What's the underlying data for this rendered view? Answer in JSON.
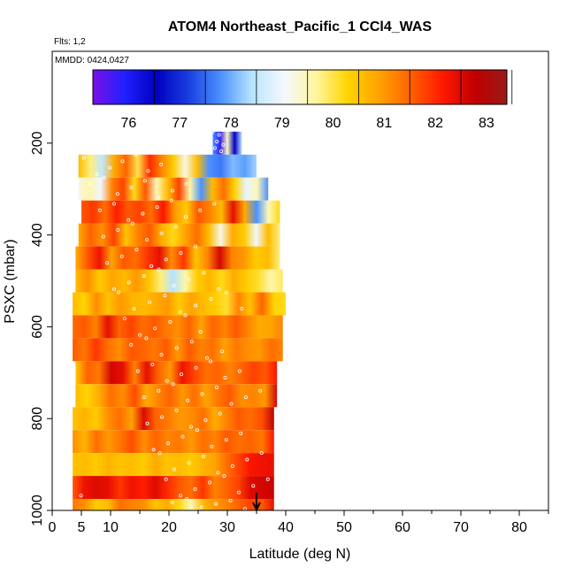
{
  "header": {
    "title": "ATOM4 Northeast_Pacific_1 CCl4_WAS",
    "flights_label": "Flts: 1,2",
    "dates_label": "MMDD: 0424,0427"
  },
  "colorbar": {
    "labels": [
      "76",
      "77",
      "78",
      "79",
      "80",
      "81",
      "82",
      "83"
    ],
    "colors": [
      "#7a10e6",
      "#2020ff",
      "#0000c0",
      "#1a3ee0",
      "#4a90ff",
      "#b8e4ff",
      "#f4f8ff",
      "#fff6a0",
      "#ffd400",
      "#ffa200",
      "#ff6000",
      "#ff1800",
      "#c00000",
      "#9a1a1a"
    ]
  },
  "chart_data": {
    "type": "heatmap",
    "title": "ATOM4 Northeast_Pacific_1 CCl4_WAS",
    "xlabel": "Latitude (deg N)",
    "ylabel": "PSXC (mbar)",
    "xlim": [
      0,
      85
    ],
    "ylim": [
      1000,
      0
    ],
    "xticks": [
      0,
      5,
      10,
      20,
      30,
      40,
      50,
      60,
      70,
      80
    ],
    "yticks": [
      200,
      400,
      600,
      800,
      1000
    ],
    "color_range": [
      75.3,
      83.4
    ],
    "color_ticks": [
      76,
      77,
      78,
      79,
      80,
      81,
      82,
      83
    ],
    "marker_latitude": 35,
    "bands": [
      {
        "p_top": 175,
        "p_bot": 225,
        "x0": 27.5,
        "x1": 32.5,
        "values": [
          77.8,
          75.8,
          79.5,
          76.5,
          78.5
        ]
      },
      {
        "p_top": 225,
        "p_bot": 275,
        "x0": 4.5,
        "x1": 35,
        "values": [
          80.6,
          79.8,
          78.5,
          80.8,
          81.5,
          80.0,
          82.0,
          81.2,
          80.4,
          79.2,
          80.6,
          77.8,
          77.6,
          78.1,
          77.9,
          78.3
        ]
      },
      {
        "p_top": 275,
        "p_bot": 325,
        "x0": 4.5,
        "x1": 37,
        "values": [
          79.2,
          79.6,
          79.0,
          81.2,
          81.8,
          80.2,
          81.6,
          79.5,
          80.6,
          81.8,
          79.6,
          77.8,
          80.6,
          81.4,
          80.3,
          78.9,
          79.5,
          77.8
        ]
      },
      {
        "p_top": 325,
        "p_bot": 375,
        "x0": 5,
        "x1": 39,
        "values": [
          81.6,
          81.9,
          81.4,
          82.1,
          81.6,
          81.8,
          81.4,
          82.2,
          81.0,
          80.4,
          81.6,
          81.2,
          80.6,
          82.4,
          80.8,
          77.8,
          79.5,
          80.2
        ]
      },
      {
        "p_top": 375,
        "p_bot": 425,
        "x0": 4.5,
        "x1": 39,
        "values": [
          80.8,
          81.5,
          81.1,
          81.8,
          80.5,
          81.2,
          81.6,
          80.8,
          80.2,
          80.9,
          81.4,
          80.6,
          79.2,
          80.8,
          80.4,
          79.0,
          80.6,
          79.8
        ]
      },
      {
        "p_top": 425,
        "p_bot": 475,
        "x0": 4,
        "x1": 39,
        "values": [
          80.8,
          81.6,
          82.3,
          80.9,
          81.6,
          81.4,
          81.9,
          82.4,
          81.1,
          81.9,
          80.5,
          81.2,
          82.6,
          81.2,
          81.0,
          80.4,
          80.6,
          79.8
        ]
      },
      {
        "p_top": 475,
        "p_bot": 525,
        "x0": 4,
        "x1": 39.5,
        "values": [
          80.6,
          81.1,
          80.4,
          80.9,
          80.6,
          81.0,
          80.5,
          79.8,
          78.4,
          79.6,
          80.4,
          80.7,
          80.2,
          80.8,
          80.4,
          80.1,
          79.6,
          79.9
        ]
      },
      {
        "p_top": 525,
        "p_bot": 575,
        "x0": 3.5,
        "x1": 40,
        "values": [
          80.6,
          80.3,
          81.1,
          80.5,
          81.0,
          80.7,
          80.6,
          80.8,
          81.0,
          80.4,
          80.9,
          80.6,
          80.4,
          80.1,
          81.2,
          80.5,
          81.5,
          80.3,
          80.2
        ]
      },
      {
        "p_top": 575,
        "p_bot": 625,
        "x0": 3.5,
        "x1": 39.5,
        "values": [
          81.4,
          81.6,
          81.2,
          82.4,
          81.5,
          81.8,
          81.4,
          81.6,
          81.3,
          81.1,
          81.5,
          80.9,
          81.5,
          81.2,
          81.6,
          81.2,
          80.8,
          80.9,
          81.2
        ]
      },
      {
        "p_top": 625,
        "p_bot": 675,
        "x0": 3.5,
        "x1": 39.5,
        "values": [
          81.6,
          81.3,
          81.9,
          81.4,
          81.1,
          81.6,
          81.5,
          81.3,
          81.6,
          81.0,
          81.6,
          81.2,
          81.4,
          80.9,
          81.3,
          81.1,
          81.0,
          81.4,
          81.2
        ]
      },
      {
        "p_top": 675,
        "p_bot": 725,
        "x0": 4,
        "x1": 38.5,
        "values": [
          80.4,
          81.5,
          81.3,
          82.6,
          82.4,
          81.2,
          82.4,
          81.5,
          81.0,
          82.3,
          81.8,
          81.4,
          81.5,
          81.2,
          81.5,
          81.8,
          81.6,
          82.2
        ]
      },
      {
        "p_top": 725,
        "p_bot": 775,
        "x0": 4,
        "x1": 38.5,
        "values": [
          80.6,
          80.3,
          80.8,
          81.4,
          81.1,
          81.7,
          80.8,
          81.2,
          81.5,
          81.0,
          81.4,
          80.9,
          81.3,
          81.6,
          81.1,
          81.2,
          81.0,
          82.6
        ]
      },
      {
        "p_top": 775,
        "p_bot": 825,
        "x0": 3.5,
        "x1": 38,
        "values": [
          80.5,
          80.7,
          80.4,
          81.1,
          81.4,
          80.9,
          82.5,
          81.5,
          81.3,
          81.0,
          81.1,
          81.4,
          80.8,
          81.2,
          81.6,
          81.4,
          81.7,
          82.9
        ]
      },
      {
        "p_top": 825,
        "p_bot": 875,
        "x0": 3.5,
        "x1": 38,
        "values": [
          81.1,
          80.7,
          81.4,
          81.0,
          81.3,
          81.7,
          81.1,
          81.5,
          81.2,
          81.3,
          81.0,
          81.4,
          81.2,
          81.6,
          81.4,
          81.5,
          81.3,
          82.2
        ]
      },
      {
        "p_top": 875,
        "p_bot": 925,
        "x0": 3.5,
        "x1": 38,
        "values": [
          80.5,
          80.6,
          80.4,
          80.7,
          80.5,
          80.6,
          80.4,
          80.8,
          80.5,
          80.6,
          80.4,
          80.7,
          80.9,
          81.4,
          81.8,
          82.2,
          82.3,
          82.4
        ]
      },
      {
        "p_top": 925,
        "p_bot": 975,
        "x0": 3.5,
        "x1": 38,
        "values": [
          81.6,
          82.3,
          82.5,
          82.4,
          81.9,
          82.3,
          82.1,
          82.5,
          82.0,
          81.6,
          81.4,
          81.9,
          81.2,
          81.5,
          81.8,
          82.5,
          82.6,
          82.7
        ]
      },
      {
        "p_top": 975,
        "p_bot": 1000,
        "x0": 3.5,
        "x1": 38,
        "values": [
          81.3,
          81.1,
          80.4,
          80.6,
          81.4,
          81.2,
          81.1,
          80.5,
          80.8,
          80.2,
          79.5,
          80.6,
          81.0,
          81.2,
          81.5,
          81.8,
          81.6,
          82.4
        ]
      }
    ]
  }
}
